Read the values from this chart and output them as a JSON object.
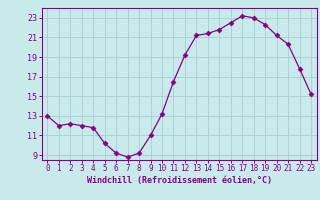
{
  "x": [
    0,
    1,
    2,
    3,
    4,
    5,
    6,
    7,
    8,
    9,
    10,
    11,
    12,
    13,
    14,
    15,
    16,
    17,
    18,
    19,
    20,
    21,
    22,
    23
  ],
  "y": [
    13.0,
    12.0,
    12.2,
    12.0,
    11.8,
    10.2,
    9.2,
    8.8,
    9.2,
    11.0,
    13.2,
    16.5,
    19.2,
    21.2,
    21.4,
    21.8,
    22.5,
    23.2,
    23.0,
    22.3,
    21.2,
    20.3,
    17.8,
    15.2
  ],
  "line_color": "#880088",
  "marker": "D",
  "marker_size": 2.5,
  "bg_color": "#c8eaea",
  "grid_color": "#a8d4d4",
  "xlabel": "Windchill (Refroidissement éolien,°C)",
  "xlabel_color": "#880088",
  "tick_color": "#880088",
  "ylim": [
    8.5,
    24.0
  ],
  "xlim": [
    -0.5,
    23.5
  ],
  "yticks": [
    9,
    11,
    13,
    15,
    17,
    19,
    21,
    23
  ],
  "xticks": [
    0,
    1,
    2,
    3,
    4,
    5,
    6,
    7,
    8,
    9,
    10,
    11,
    12,
    13,
    14,
    15,
    16,
    17,
    18,
    19,
    20,
    21,
    22,
    23
  ]
}
